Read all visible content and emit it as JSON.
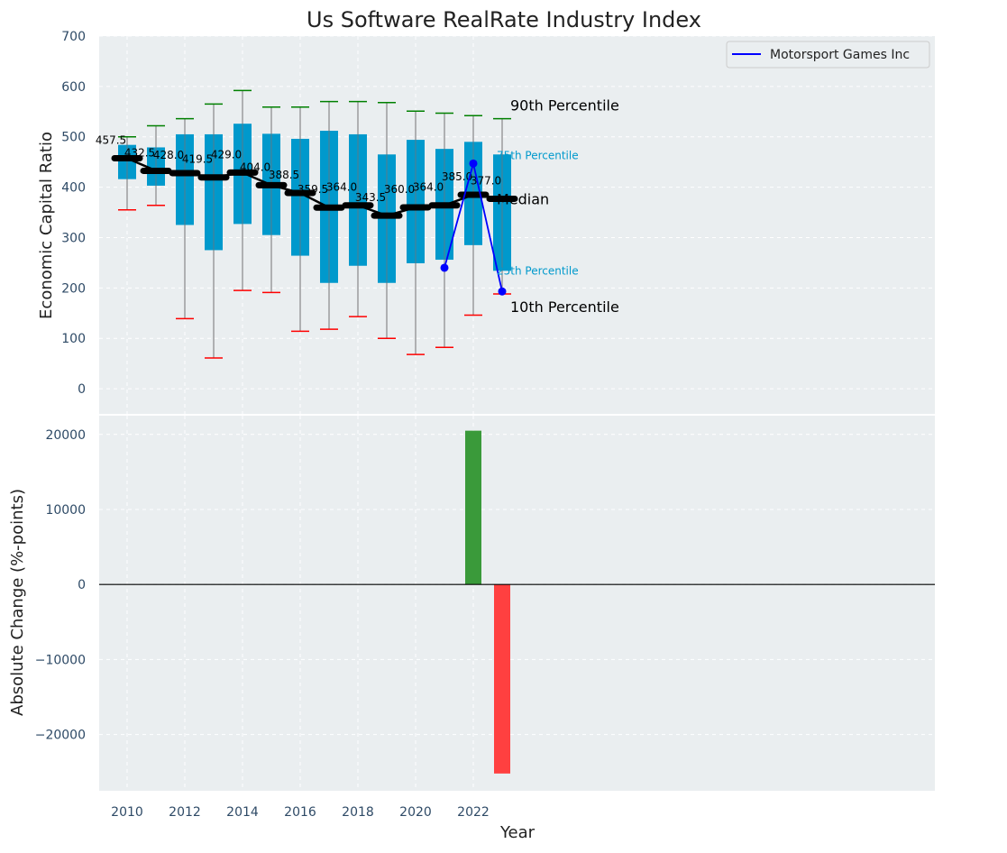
{
  "chart_data": [
    {
      "type": "box",
      "title": "Us Software RealRate Industry Index",
      "xlabel": "",
      "ylabel": "Economic Capital Ratio",
      "ylim": [
        -50,
        700
      ],
      "yticks": [
        0,
        100,
        200,
        300,
        400,
        500,
        600,
        700
      ],
      "grid": true,
      "legend": {
        "position": "top-right",
        "entries": [
          "Motorsport Games Inc"
        ]
      },
      "years": [
        2010,
        2011,
        2012,
        2013,
        2014,
        2015,
        2016,
        2017,
        2018,
        2019,
        2020,
        2021,
        2022,
        2023
      ],
      "p10": [
        355,
        364,
        139,
        61,
        195,
        191,
        114,
        118,
        143,
        100,
        68,
        82,
        146,
        188
      ],
      "q1": [
        416,
        403,
        325,
        275,
        327,
        305,
        264,
        210,
        244,
        210,
        249,
        256,
        285,
        234
      ],
      "median": [
        457.5,
        432.5,
        428.0,
        419.5,
        429.0,
        404.0,
        388.5,
        359.5,
        364.0,
        343.5,
        360.0,
        364.0,
        385.0,
        377.0
      ],
      "median_labels": [
        "457.5",
        "432.5",
        "428.0",
        "419.5",
        "429.0",
        "404.0",
        "388.5",
        "359.5",
        "364.0",
        "343.5",
        "360.0",
        "364.0",
        "385.0",
        "377.0"
      ],
      "q3": [
        484,
        479,
        505,
        505,
        526,
        506,
        496,
        512,
        505,
        465,
        494,
        476,
        490,
        465
      ],
      "p90": [
        500,
        522,
        536,
        565,
        592,
        559,
        559,
        570,
        570,
        568,
        551,
        547,
        542,
        536
      ],
      "company": {
        "name": "Motorsport Games Inc",
        "years": [
          2021,
          2022,
          2023
        ],
        "values": [
          240,
          447,
          193
        ]
      },
      "annotations": {
        "p90": "90th Percentile",
        "p75": "75th Percentile",
        "median": "Median",
        "p25": "25th Percentile",
        "p10": "10th Percentile"
      },
      "colors": {
        "box": "#0099cc",
        "median_line": "#000000",
        "p90_cap": "#008000",
        "p10_cap": "#ff0000",
        "company": "#0000ff",
        "background": "#eaeef0"
      }
    },
    {
      "type": "bar",
      "xlabel": "Year",
      "ylabel": "Absolute Change (%-points)",
      "ylim": [
        -27500,
        22500
      ],
      "yticks": [
        -20000,
        -10000,
        0,
        10000,
        20000
      ],
      "xticks": [
        2010,
        2012,
        2014,
        2016,
        2018,
        2020,
        2022
      ],
      "grid": true,
      "x": [
        2022,
        2023
      ],
      "values": [
        20500,
        -25200
      ],
      "colors": {
        "positive": "#3a9a3a",
        "negative": "#ff4040"
      }
    }
  ]
}
